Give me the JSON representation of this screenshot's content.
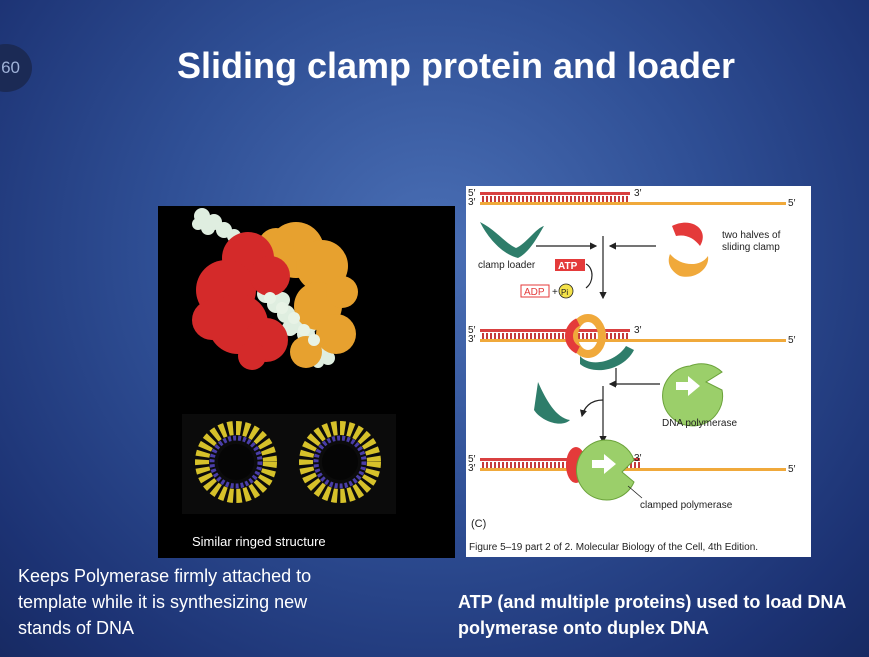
{
  "slide": {
    "number": "60"
  },
  "title": "Sliding clamp protein and loader",
  "left_figure": {
    "caption": "Similar ringed structure"
  },
  "right_figure": {
    "five_prime": "5′",
    "three_prime": "3′",
    "clamp_loader_label": "clamp loader",
    "atp_label": "ATP",
    "adp_label": "ADP",
    "plus_label": "+",
    "pi_label": "Pi",
    "sliding_clamp_label_line1": "two halves of",
    "sliding_clamp_label_line2": "sliding clamp",
    "dna_polymerase_label": "DNA polymerase",
    "clamped_polymerase_label": "clamped polymerase",
    "panel_letter": "(C)",
    "caption": "Figure 5–19 part 2 of 2. Molecular Biology of the Cell, 4th Edition."
  },
  "body_left": "Keeps Polymerase firmly attached to template while it is synthesizing new stands of DNA",
  "body_right": "ATP (and multiple proteins) used to load DNA polymerase onto duplex DNA",
  "colors": {
    "accent_red": "#e43a3a",
    "strand_orange": "#f0a93b",
    "protein_green": "#2e7d6a",
    "polymerase_green": "#9bcf6a"
  }
}
